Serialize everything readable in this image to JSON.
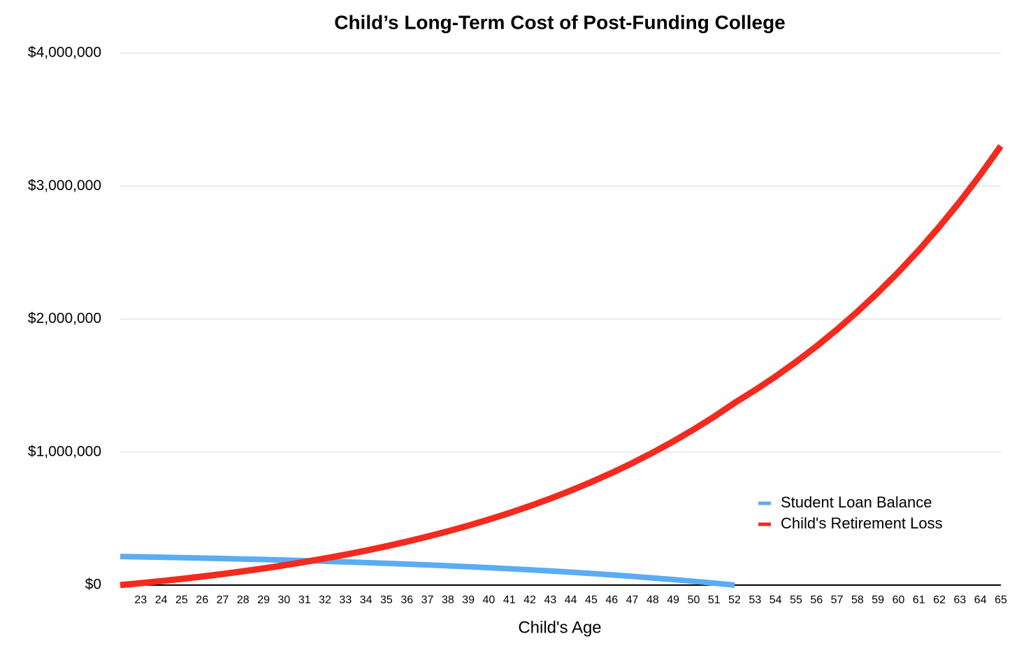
{
  "chart_data": {
    "type": "line",
    "title": "Child’s Long-Term Cost of Post-Funding College",
    "x_label": "Child's Age",
    "categories": [
      null,
      "23",
      "24",
      "25",
      "26",
      "27",
      "28",
      "29",
      "30",
      "31",
      "32",
      "33",
      "34",
      "35",
      "36",
      "37",
      "38",
      "39",
      "40",
      "41",
      "42",
      "43",
      "44",
      "45",
      "46",
      "47",
      "48",
      "49",
      "50",
      "51",
      "52",
      "53",
      "54",
      "55",
      "56",
      "57",
      "58",
      "59",
      "60",
      "61",
      "62",
      "63",
      "64",
      "65"
    ],
    "series": [
      {
        "name": "Student Loan Balance",
        "color": "#5aacf5",
        "values": [
          215000,
          212300,
          209400,
          206300,
          203100,
          199700,
          196000,
          192200,
          188100,
          183800,
          179200,
          174300,
          169100,
          163700,
          157900,
          151700,
          145200,
          138300,
          130900,
          123200,
          114900,
          106200,
          97000,
          87200,
          76800,
          65800,
          54100,
          41700,
          28600,
          14700,
          0,
          null,
          null,
          null,
          null,
          null,
          null,
          null,
          null,
          null,
          null,
          null,
          null,
          null
        ]
      },
      {
        "name": "Child's Retirement Loss",
        "color": "#f42a1e",
        "values": [
          0,
          14500,
          30000,
          46600,
          64400,
          83400,
          103700,
          125500,
          148800,
          173700,
          200400,
          228900,
          259400,
          292100,
          326900,
          364400,
          404400,
          447200,
          492900,
          541900,
          594400,
          650400,
          710500,
          774700,
          843500,
          917000,
          995800,
          1080000,
          1170000,
          1266000,
          1370000,
          1466000,
          1568600,
          1678400,
          1795900,
          1921600,
          2056100,
          2200000,
          2354000,
          2518800,
          2695100,
          2883800,
          3085700,
          3301700
        ]
      }
    ],
    "ylim": [
      0,
      4000000
    ],
    "yticks": [
      {
        "value": 0,
        "label": "$0"
      },
      {
        "value": 1000000,
        "label": "$1,000,000"
      },
      {
        "value": 2000000,
        "label": "$2,000,000"
      },
      {
        "value": 3000000,
        "label": "$3,000,000"
      },
      {
        "value": 4000000,
        "label": "$4,000,000"
      }
    ],
    "grid": true,
    "legend": "lower right"
  }
}
